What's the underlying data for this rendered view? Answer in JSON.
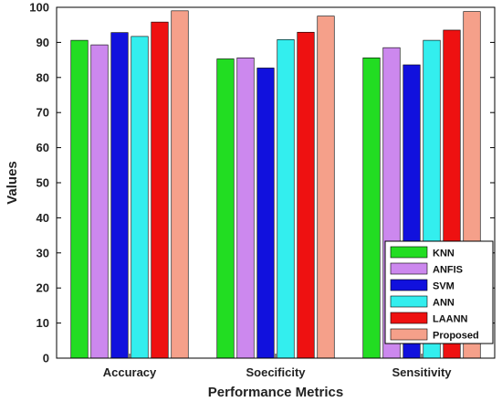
{
  "chart_data": {
    "type": "bar",
    "title": "",
    "xlabel": "Performance Metrics",
    "ylabel": "Values",
    "ylim": [
      0,
      100
    ],
    "yticks": [
      0,
      10,
      20,
      30,
      40,
      50,
      60,
      70,
      80,
      90,
      100
    ],
    "categories": [
      "Accuracy",
      "Soecificity",
      "Sensitivity"
    ],
    "series": [
      {
        "name": "KNN",
        "color": "#22dd22",
        "values": [
          90.6,
          85.3,
          85.6
        ]
      },
      {
        "name": "ANFIS",
        "color": "#cc88ee",
        "values": [
          89.3,
          85.6,
          88.5
        ]
      },
      {
        "name": "SVM",
        "color": "#1111dd",
        "values": [
          92.8,
          82.7,
          83.6
        ]
      },
      {
        "name": "ANN",
        "color": "#33eeee",
        "values": [
          91.7,
          90.8,
          90.6
        ]
      },
      {
        "name": "LAANN",
        "color": "#ee1111",
        "values": [
          95.8,
          92.9,
          93.5
        ]
      },
      {
        "name": "Proposed",
        "color": "#f5a08a",
        "values": [
          99.0,
          97.5,
          98.8
        ]
      }
    ],
    "grid": false,
    "legend_position": "bottom-right"
  }
}
